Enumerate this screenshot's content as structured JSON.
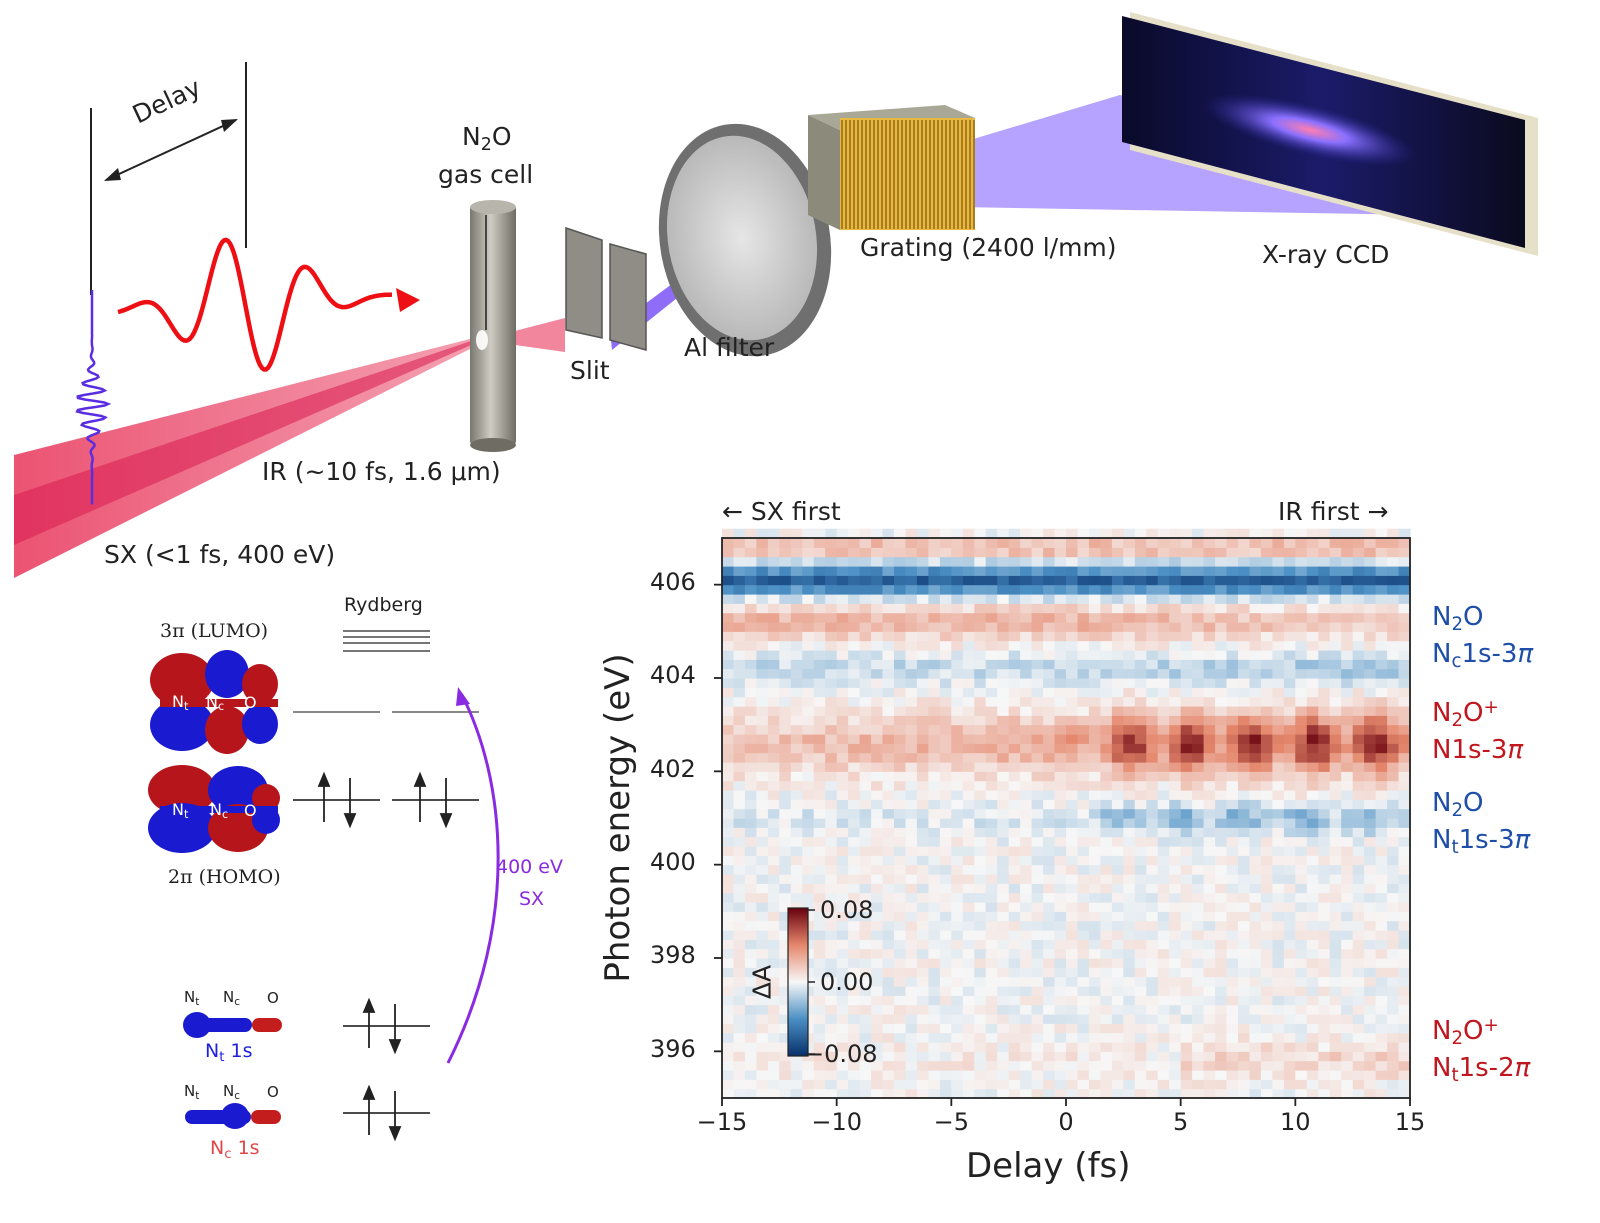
{
  "setup": {
    "delay_label": "Delay",
    "gas_cell_label_mol": "N",
    "gas_cell_label_mol_sub": "2",
    "gas_cell_label_mol_tail": "O",
    "gas_cell_label": "gas cell",
    "slit_label": "Slit",
    "al_filter_label": "Al filter",
    "grating_label": "Grating (2400 l/mm)",
    "ccd_label": "X-ray CCD",
    "ir_label": "IR (~10 fs, 1.6 μm)",
    "sx_label": "SX (<1 fs, 400 eV)"
  },
  "levels": {
    "rydberg_label": "Rydberg",
    "lumo_label": "3π (LUMO)",
    "homo_label": "2π (HOMO)",
    "transition_line1": "400 eV",
    "transition_line2": "SX",
    "atom_nt": "N",
    "atom_nt_sub": "t",
    "atom_nc": "N",
    "atom_nc_sub": "c",
    "atom_o": "O",
    "core1_label": "N",
    "core1_sub": "t",
    "core1_tail": " 1s",
    "core2_label": "N",
    "core2_sub": "c",
    "core2_tail": " 1s",
    "colors": {
      "lobe_red": "#b5151b",
      "lobe_blue": "#1a1ad0",
      "arrow": "#8a2be2"
    }
  },
  "heatmap": {
    "left_note": "← SX first",
    "right_note": "IR first →",
    "xlabel": "Delay (fs)",
    "ylabel": "Photon energy (eV)",
    "x_ticks": [
      "−15",
      "−10",
      "−5",
      "0",
      "5",
      "10",
      "15"
    ],
    "y_ticks": [
      "406",
      "404",
      "402",
      "400",
      "398",
      "396"
    ],
    "colorbar_label": "ΔA",
    "colorbar_ticks": [
      "0.08",
      "0.00",
      "−0.08"
    ],
    "annotations": [
      {
        "l1a": "N",
        "l1s": "2",
        "l1b": "O",
        "l1sup": "",
        "l2a": "N",
        "l2s": "c",
        "l2b": "1s-3",
        "l2pi": "π",
        "color": "#1f4ea8"
      },
      {
        "l1a": "N",
        "l1s": "2",
        "l1b": "O",
        "l1sup": "+",
        "l2a": "N1s-3",
        "l2s": "",
        "l2b": "",
        "l2pi": "π",
        "color": "#c0171f"
      },
      {
        "l1a": "N",
        "l1s": "2",
        "l1b": "O",
        "l1sup": "",
        "l2a": "N",
        "l2s": "t",
        "l2b": "1s-3",
        "l2pi": "π",
        "color": "#1f4ea8"
      },
      {
        "l1a": "N",
        "l1s": "2",
        "l1b": "O",
        "l1sup": "+",
        "l2a": "N",
        "l2s": "t",
        "l2b": "1s-2",
        "l2pi": "π",
        "color": "#c0171f"
      }
    ]
  },
  "chart_data": {
    "type": "heatmap",
    "x_range": [
      -15,
      15
    ],
    "y_range": [
      395,
      407
    ],
    "color_range": [
      -0.08,
      0.08
    ],
    "xlabel": "Delay (fs)",
    "ylabel": "Photon energy (eV)",
    "colorbar_label": "ΔA",
    "bands": [
      {
        "energy": 406.1,
        "value": -0.06
      },
      {
        "energy": 405.2,
        "value": 0.025
      },
      {
        "energy": 404.2,
        "value": -0.02
      },
      {
        "energy": 402.5,
        "value": 0.07
      },
      {
        "energy": 401.0,
        "value": -0.03
      },
      {
        "energy": 395.8,
        "value": 0.015
      }
    ]
  }
}
